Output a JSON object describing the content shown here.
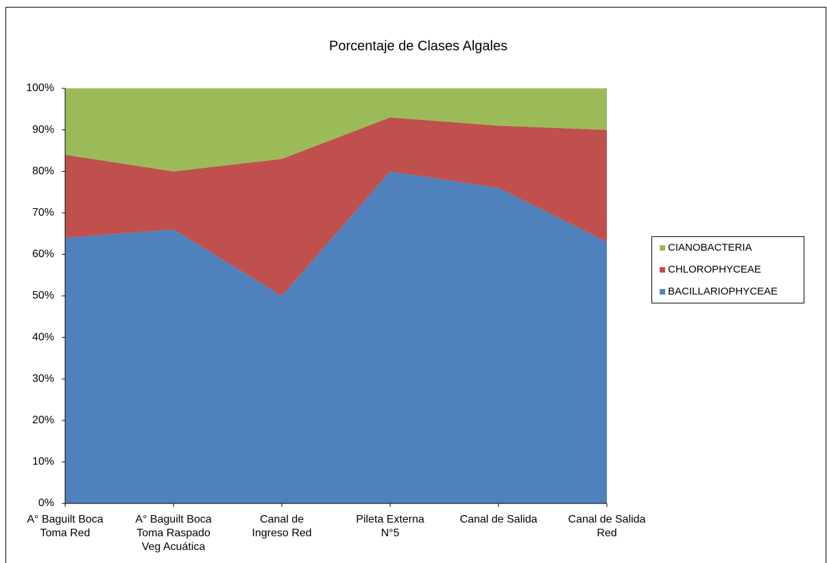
{
  "chart_data": {
    "type": "area",
    "stacked": true,
    "title": "Porcentaje de Clases Algales",
    "categories": [
      [
        "A° Baguilt Boca",
        "Toma Red"
      ],
      [
        "A° Baguilt Boca",
        "Toma Raspado",
        "Veg Acuática"
      ],
      [
        "Canal de",
        "Ingreso Red"
      ],
      [
        "Pileta Externa",
        "N°5"
      ],
      [
        "Canal de Salida"
      ],
      [
        "Canal de Salida",
        "Red"
      ]
    ],
    "series": [
      {
        "name": "BACILLARIOPHYCEAE",
        "color": "#4f81bd",
        "values": [
          64,
          66,
          50,
          80,
          76,
          63
        ]
      },
      {
        "name": "CHLOROPHYCEAE",
        "color": "#c0504d",
        "values": [
          20,
          14,
          33,
          13,
          15,
          27
        ]
      },
      {
        "name": "CIANOBACTERIA",
        "color": "#9bbb59",
        "values": [
          16,
          20,
          17,
          7,
          9,
          10
        ]
      }
    ],
    "ylim": [
      0,
      100
    ],
    "yticks": [
      {
        "value": 0,
        "label": "0%"
      },
      {
        "value": 10,
        "label": "10%"
      },
      {
        "value": 20,
        "label": "20%"
      },
      {
        "value": 30,
        "label": "30%"
      },
      {
        "value": 40,
        "label": "40%"
      },
      {
        "value": 50,
        "label": "50%"
      },
      {
        "value": 60,
        "label": "60%"
      },
      {
        "value": 70,
        "label": "70%"
      },
      {
        "value": 80,
        "label": "80%"
      },
      {
        "value": 90,
        "label": "90%"
      },
      {
        "value": 100,
        "label": "100%"
      }
    ],
    "legend": "right"
  }
}
